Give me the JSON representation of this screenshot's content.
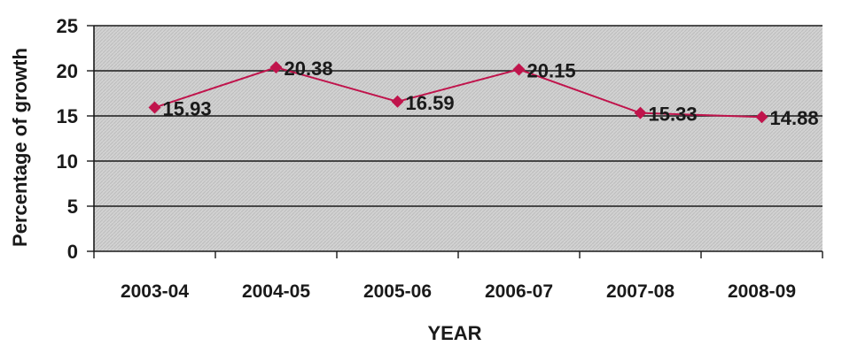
{
  "chart_data": {
    "type": "line",
    "title": "",
    "xlabel": "YEAR",
    "ylabel": "Percentage of growth",
    "categories": [
      "2003-04",
      "2004-05",
      "2005-06",
      "2006-07",
      "2007-08",
      "2008-09"
    ],
    "series": [
      {
        "values": [
          15.93,
          20.38,
          16.59,
          20.15,
          15.33,
          14.88
        ],
        "data_labels": [
          "15.93",
          "20.38",
          "16.59",
          "20.15",
          "15.33",
          "14.88"
        ]
      }
    ],
    "ylim": [
      0,
      25
    ],
    "yticks": [
      "0",
      "5",
      "10",
      "15",
      "20",
      "25"
    ],
    "grid": true,
    "legend": "none",
    "marker": "diamond"
  },
  "colors": {
    "series": "#c0144c",
    "plot_background": "#cfcfcf",
    "gridline": "#1a1a1a",
    "text": "#1a1a1a"
  }
}
